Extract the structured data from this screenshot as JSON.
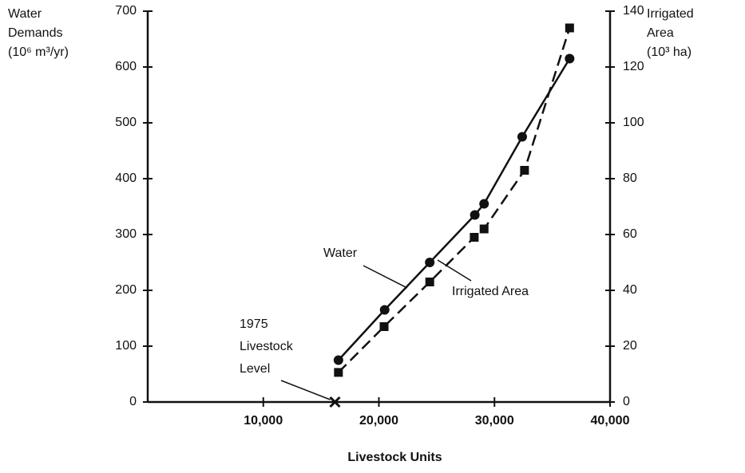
{
  "chart_data": {
    "type": "line",
    "y_label_lines": [
      "Water",
      "Demands",
      "(10⁶ m³/yr)"
    ],
    "y2_label_lines": [
      "Irrigated",
      "Area",
      "(10³ ha)"
    ],
    "x_label": "Livestock Units",
    "xlim": [
      0,
      40000
    ],
    "xticks": [
      {
        "value": 10000,
        "label": "10,000"
      },
      {
        "value": 20000,
        "label": "20,000"
      },
      {
        "value": 30000,
        "label": "30,000"
      },
      {
        "value": 40000,
        "label": "40,000"
      }
    ],
    "ylim": [
      0,
      700
    ],
    "yticks": [
      0,
      100,
      200,
      300,
      400,
      500,
      600,
      700
    ],
    "y2lim": [
      0,
      140
    ],
    "y2ticks": [
      0,
      20,
      40,
      60,
      80,
      100,
      120,
      140
    ],
    "series": [
      {
        "name": "Water",
        "color": "#111111",
        "dash": false,
        "marker": "circle",
        "x": [
          16500,
          20500,
          24400,
          28300,
          29100,
          32400,
          36500
        ],
        "values": [
          75,
          165,
          250,
          335,
          355,
          475,
          615
        ]
      },
      {
        "name": "Irrigated Area",
        "color": "#111111",
        "dash": true,
        "marker": "square",
        "axis": "y2",
        "x": [
          16500,
          20450,
          24400,
          28250,
          29100,
          32600,
          36500
        ],
        "values": [
          10.6,
          27,
          43,
          59,
          62,
          83,
          134
        ]
      }
    ],
    "marker": {
      "x": 16200,
      "y": 0,
      "label_lines": [
        "1975",
        "Livestock",
        "Level"
      ]
    }
  }
}
